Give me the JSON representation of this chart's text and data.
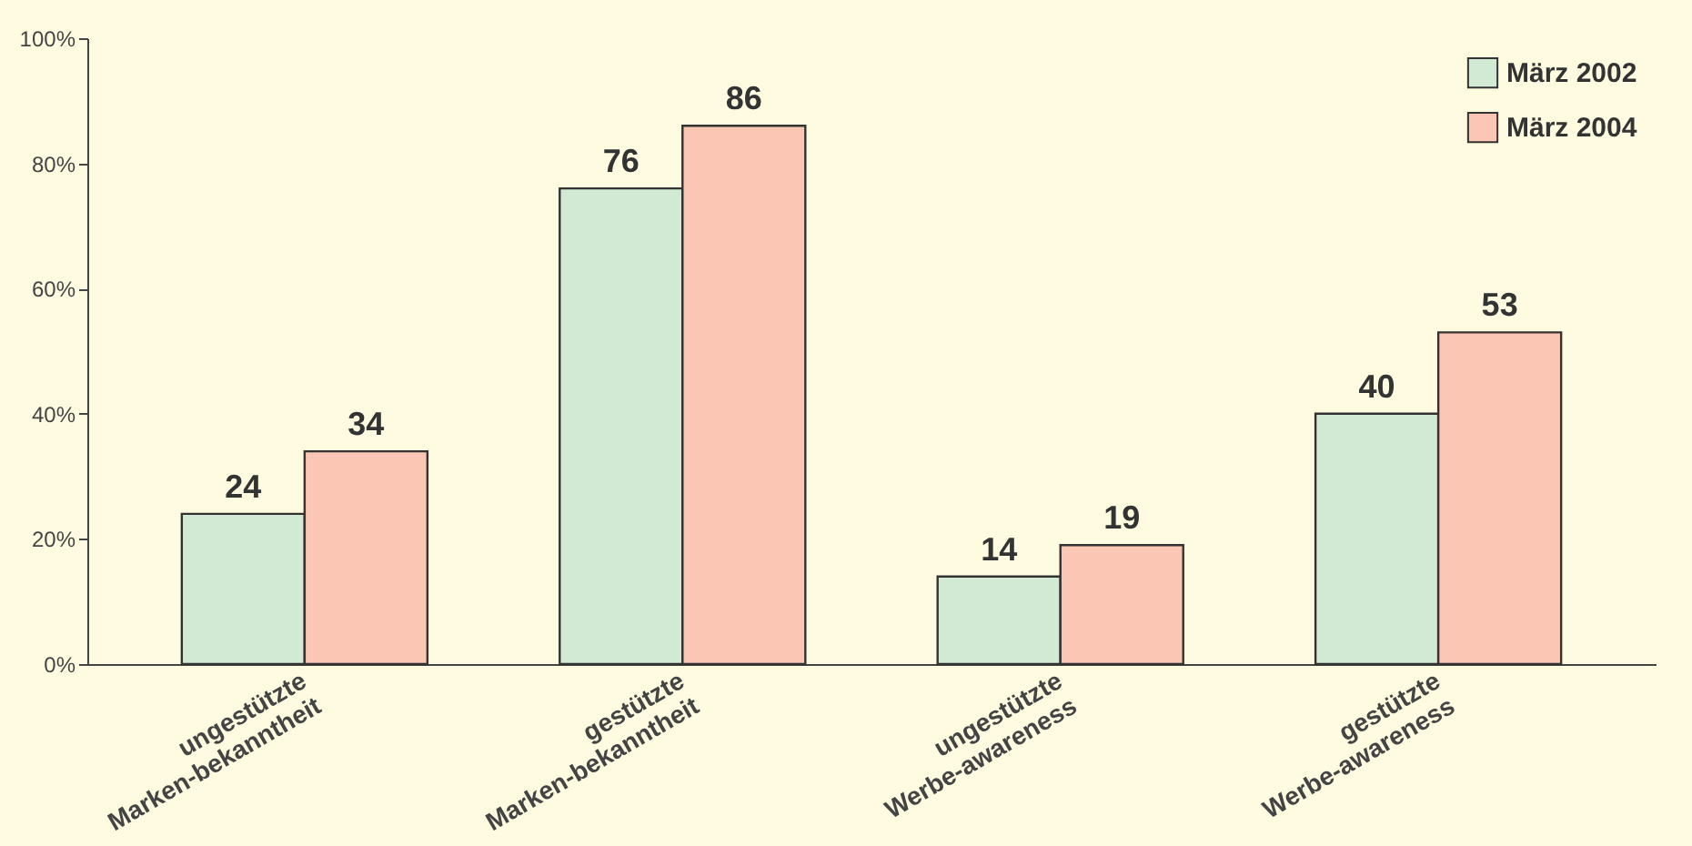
{
  "chart_data": {
    "type": "bar",
    "categories": [
      "ungestützte Marken-bekanntheit",
      "gestützte Marken-bekanntheit",
      "ungestützte Werbe-awareness",
      "gestützte Werbe-awareness"
    ],
    "series": [
      {
        "name": "März 2002",
        "color": "#d2ead4",
        "values": [
          24,
          76,
          14,
          40
        ]
      },
      {
        "name": "März 2004",
        "color": "#fbc6b4",
        "values": [
          34,
          86,
          19,
          53
        ]
      }
    ],
    "ylim": [
      0,
      100
    ],
    "yticks": [
      {
        "value": 0,
        "label": "0%"
      },
      {
        "value": 20,
        "label": "20%"
      },
      {
        "value": 40,
        "label": "40%"
      },
      {
        "value": 60,
        "label": "60%"
      },
      {
        "value": 80,
        "label": "80%"
      },
      {
        "value": 100,
        "label": "100%"
      }
    ],
    "data_labels": true,
    "grid": false,
    "legend": "top right"
  }
}
